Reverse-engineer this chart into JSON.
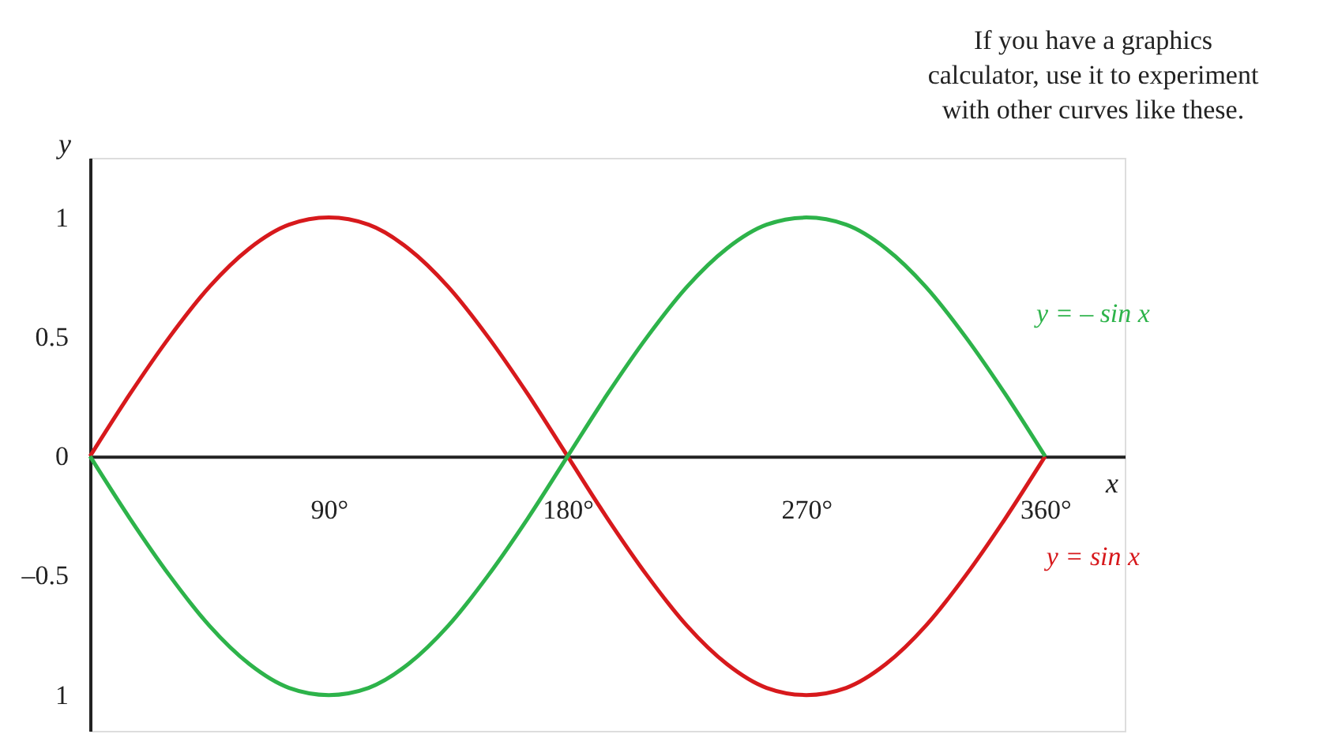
{
  "chart_data": {
    "type": "line",
    "x": [
      0,
      15,
      30,
      45,
      60,
      75,
      90,
      105,
      120,
      135,
      150,
      165,
      180,
      195,
      210,
      225,
      240,
      255,
      270,
      285,
      300,
      315,
      330,
      345,
      360
    ],
    "series": [
      {
        "name": "y = sin x",
        "color": "#d7191c",
        "values": [
          0,
          0.26,
          0.5,
          0.71,
          0.87,
          0.97,
          1,
          0.97,
          0.87,
          0.71,
          0.5,
          0.26,
          0,
          -0.26,
          -0.5,
          -0.71,
          -0.87,
          -0.97,
          -1,
          -0.97,
          -0.87,
          -0.71,
          -0.5,
          -0.26,
          0
        ]
      },
      {
        "name": "y = – sin x",
        "color": "#2db34a",
        "values": [
          0,
          -0.26,
          -0.5,
          -0.71,
          -0.87,
          -0.97,
          -1,
          -0.97,
          -0.87,
          -0.71,
          -0.5,
          -0.26,
          0,
          0.26,
          0.5,
          0.71,
          0.87,
          0.97,
          1,
          0.97,
          0.87,
          0.71,
          0.5,
          0.26,
          0
        ]
      }
    ],
    "xlabel": "x",
    "ylabel": "y",
    "xlim": [
      0,
      390
    ],
    "ylim": [
      -1.15,
      1.25
    ],
    "xticks": [
      {
        "value": 90,
        "label": "90°"
      },
      {
        "value": 180,
        "label": "180°"
      },
      {
        "value": 270,
        "label": "270°"
      },
      {
        "value": 360,
        "label": "360°"
      }
    ],
    "yticks": [
      {
        "value": -1,
        "label": "1"
      },
      {
        "value": -0.5,
        "label": "–0.5"
      },
      0,
      0.5,
      1
    ],
    "annotations": [
      "If you have a graphics\ncalculator, use it to experiment\nwith other curves like these."
    ],
    "grid": false,
    "legend": false,
    "marker": "none",
    "line_style": "solid"
  }
}
